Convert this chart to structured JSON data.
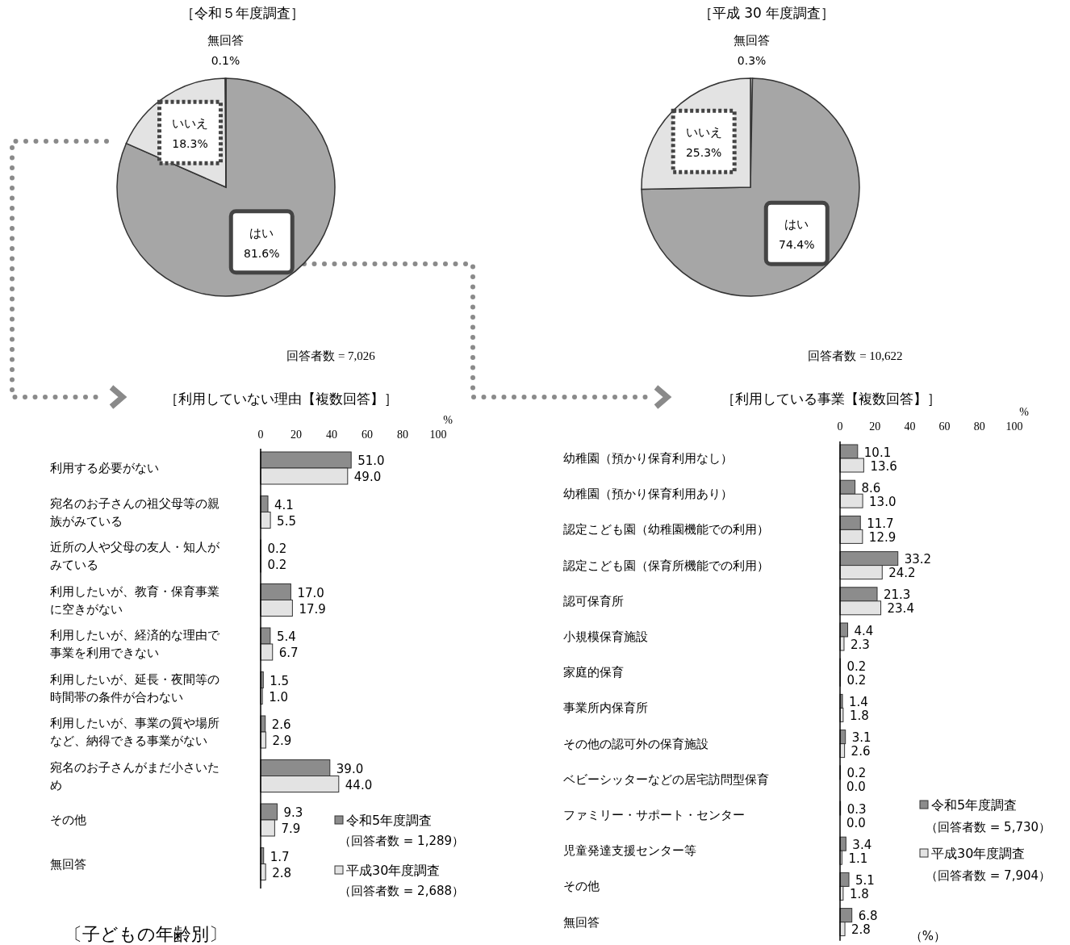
{
  "chart_data": [
    {
      "type": "pie",
      "title": "［令和５年度調査］",
      "categories": [
        "はい",
        "いいえ",
        "無回答"
      ],
      "values": [
        81.6,
        18.3,
        0.1
      ],
      "colors": [
        "#a6a6a6",
        "#e3e3e3",
        "#ffffff"
      ],
      "value_labels": [
        "81.6%",
        "18.3%",
        "0.1%"
      ],
      "annotations": [
        "回答者数 = 7,026"
      ]
    },
    {
      "type": "pie",
      "title": "［平成 30 年度調査］",
      "categories": [
        "無回答",
        "はい",
        "いいえ"
      ],
      "values": [
        0.3,
        74.4,
        25.3
      ],
      "colors": [
        "#ffffff",
        "#a6a6a6",
        "#e3e3e3"
      ],
      "value_labels": [
        "0.3%",
        "74.4%",
        "25.3%"
      ],
      "annotations": [
        "回答者数 = 10,622"
      ]
    },
    {
      "type": "bar",
      "orientation": "horizontal",
      "title": "［利用していない理由【複数回答】］",
      "xlabel": "%",
      "xlim": [
        0,
        100
      ],
      "xticks": [
        0,
        20,
        40,
        60,
        80,
        100
      ],
      "legend": "bottom right",
      "categories": [
        "利用する必要がない",
        "宛名のお子さんの祖父母等の親族がみている",
        "近所の人や父母の友人・知人がみている",
        "利用したいが、教育・保育事業に空きがない",
        "利用したいが、経済的な理由で事業を利用できない",
        "利用したいが、延長・夜間等の時間帯の条件が合わない",
        "利用したいが、事業の質や場所など、納得できる事業がない",
        "宛名のお子さんがまだ小さいため",
        "その他",
        "無回答"
      ],
      "series": [
        {
          "name": "令和5年度調査",
          "color": "#8c8c8c",
          "values": [
            51.0,
            4.1,
            0.2,
            17.0,
            5.4,
            1.5,
            2.6,
            39.0,
            9.3,
            1.7
          ],
          "value_labels": [
            "51.0",
            "4.1",
            "0.2",
            "17.0",
            "5.4",
            "1.5",
            "2.6",
            "39.0",
            "9.3",
            "1.7"
          ]
        },
        {
          "name": "平成30年度調査",
          "color": "#e3e3e3",
          "values": [
            49.0,
            5.5,
            0.2,
            17.9,
            6.7,
            1.0,
            2.9,
            44.0,
            7.9,
            2.8
          ],
          "value_labels": [
            "49.0",
            "5.5",
            "0.2",
            "17.9",
            "6.7",
            "1.0",
            "2.9",
            "44.0",
            "7.9",
            "2.8"
          ]
        }
      ],
      "annotations": [
        "（回答者数 = 1,289）",
        "（回答者数 = 2,688）",
        "〔子どもの年齢別〕"
      ]
    },
    {
      "type": "bar",
      "orientation": "horizontal",
      "title": "［利用している事業【複数回答】］",
      "xlabel": "%",
      "xlim": [
        0,
        100
      ],
      "xticks": [
        0,
        20,
        40,
        60,
        80,
        100
      ],
      "legend": "bottom right",
      "categories": [
        "幼稚園（預かり保育利用なし）",
        "幼稚園（預かり保育利用あり）",
        "認定こども園（幼稚園機能での利用）",
        "認定こども園（保育所機能での利用）",
        "認可保育所",
        "小規模保育施設",
        "家庭的保育",
        "事業所内保育所",
        "その他の認可外の保育施設",
        "ベビーシッターなどの居宅訪問型保育",
        "ファミリー・サポート・センター",
        "児童発達支援センター等",
        "その他",
        "無回答"
      ],
      "series": [
        {
          "name": "令和5年度調査",
          "color": "#8c8c8c",
          "values": [
            10.1,
            8.6,
            11.7,
            33.2,
            21.3,
            4.4,
            0.2,
            1.4,
            3.1,
            0.2,
            0.3,
            3.4,
            5.1,
            6.8
          ],
          "value_labels": [
            "10.1",
            "8.6",
            "11.7",
            "33.2",
            "21.3",
            "4.4",
            "0.2",
            "1.4",
            "3.1",
            "0.2",
            "0.3",
            "3.4",
            "5.1",
            "6.8"
          ]
        },
        {
          "name": "平成30年度調査",
          "color": "#e3e3e3",
          "values": [
            13.6,
            13.0,
            12.9,
            24.2,
            23.4,
            2.3,
            0.2,
            1.8,
            2.6,
            0.0,
            0.0,
            1.1,
            1.8,
            2.8
          ],
          "value_labels": [
            "13.6",
            "13.0",
            "12.9",
            "24.2",
            "23.4",
            "2.3",
            "0.2",
            "1.8",
            "2.6",
            "0.0",
            "0.0",
            "1.1",
            "1.8",
            "2.8"
          ]
        }
      ],
      "annotations": [
        "（回答者数 = 5,730）",
        "（回答者数 = 7,904）",
        "（%）"
      ]
    }
  ]
}
